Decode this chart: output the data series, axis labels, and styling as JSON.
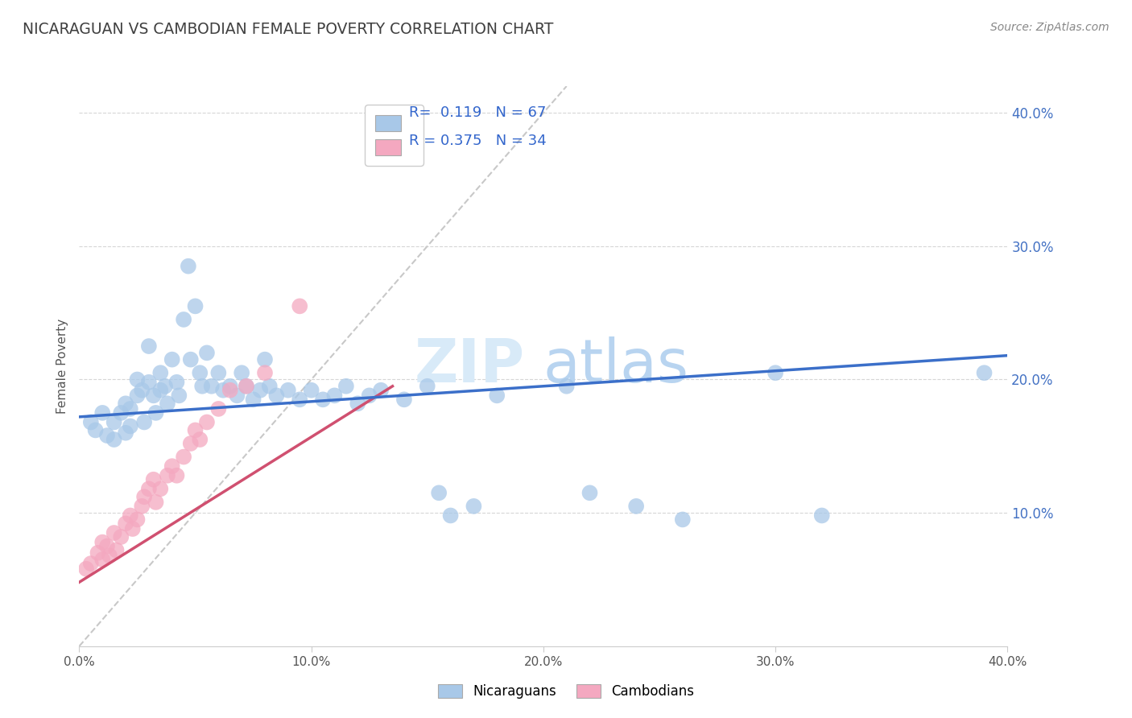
{
  "title": "NICARAGUAN VS CAMBODIAN FEMALE POVERTY CORRELATION CHART",
  "source_text": "Source: ZipAtlas.com",
  "ylabel": "Female Poverty",
  "xlim": [
    0.0,
    0.4
  ],
  "ylim": [
    0.0,
    0.42
  ],
  "xtick_vals": [
    0.0,
    0.1,
    0.2,
    0.3,
    0.4
  ],
  "ytick_vals": [
    0.1,
    0.2,
    0.3,
    0.4
  ],
  "watermark_zip": "ZIP",
  "watermark_atlas": "atlas",
  "blue_color": "#A8C8E8",
  "pink_color": "#F4A8C0",
  "blue_line_color": "#3B6FC9",
  "pink_line_color": "#D05070",
  "diag_color": "#C8C8C8",
  "grid_color": "#CCCCCC",
  "title_color": "#404040",
  "ytick_color": "#4472C4",
  "background_color": "#FFFFFF",
  "nic_x": [
    0.005,
    0.007,
    0.01,
    0.012,
    0.015,
    0.015,
    0.018,
    0.02,
    0.02,
    0.022,
    0.022,
    0.025,
    0.025,
    0.027,
    0.028,
    0.03,
    0.03,
    0.032,
    0.033,
    0.035,
    0.035,
    0.037,
    0.038,
    0.04,
    0.042,
    0.043,
    0.045,
    0.047,
    0.048,
    0.05,
    0.052,
    0.053,
    0.055,
    0.057,
    0.06,
    0.062,
    0.065,
    0.068,
    0.07,
    0.072,
    0.075,
    0.078,
    0.08,
    0.082,
    0.085,
    0.09,
    0.095,
    0.1,
    0.105,
    0.11,
    0.115,
    0.12,
    0.125,
    0.13,
    0.14,
    0.15,
    0.155,
    0.16,
    0.17,
    0.18,
    0.21,
    0.22,
    0.24,
    0.26,
    0.3,
    0.32,
    0.39
  ],
  "nic_y": [
    0.168,
    0.162,
    0.175,
    0.158,
    0.168,
    0.155,
    0.175,
    0.182,
    0.16,
    0.178,
    0.165,
    0.2,
    0.188,
    0.192,
    0.168,
    0.225,
    0.198,
    0.188,
    0.175,
    0.205,
    0.192,
    0.195,
    0.182,
    0.215,
    0.198,
    0.188,
    0.245,
    0.285,
    0.215,
    0.255,
    0.205,
    0.195,
    0.22,
    0.195,
    0.205,
    0.192,
    0.195,
    0.188,
    0.205,
    0.195,
    0.185,
    0.192,
    0.215,
    0.195,
    0.188,
    0.192,
    0.185,
    0.192,
    0.185,
    0.188,
    0.195,
    0.182,
    0.188,
    0.192,
    0.185,
    0.195,
    0.115,
    0.098,
    0.105,
    0.188,
    0.195,
    0.115,
    0.105,
    0.095,
    0.205,
    0.098,
    0.205
  ],
  "cam_x": [
    0.003,
    0.005,
    0.008,
    0.01,
    0.01,
    0.012,
    0.013,
    0.015,
    0.016,
    0.018,
    0.02,
    0.022,
    0.023,
    0.025,
    0.027,
    0.028,
    0.03,
    0.032,
    0.033,
    0.035,
    0.038,
    0.04,
    0.042,
    0.045,
    0.048,
    0.05,
    0.052,
    0.055,
    0.06,
    0.065,
    0.072,
    0.08,
    0.095,
    0.13
  ],
  "cam_y": [
    0.058,
    0.062,
    0.07,
    0.078,
    0.065,
    0.075,
    0.068,
    0.085,
    0.072,
    0.082,
    0.092,
    0.098,
    0.088,
    0.095,
    0.105,
    0.112,
    0.118,
    0.125,
    0.108,
    0.118,
    0.128,
    0.135,
    0.128,
    0.142,
    0.152,
    0.162,
    0.155,
    0.168,
    0.178,
    0.192,
    0.195,
    0.205,
    0.255,
    0.375
  ],
  "blue_line_x": [
    0.0,
    0.4
  ],
  "blue_line_y": [
    0.172,
    0.218
  ],
  "pink_line_x": [
    0.0,
    0.135
  ],
  "pink_line_y": [
    0.048,
    0.195
  ],
  "diag_line_x": [
    0.0,
    0.21
  ],
  "diag_line_y": [
    0.0,
    0.42
  ]
}
